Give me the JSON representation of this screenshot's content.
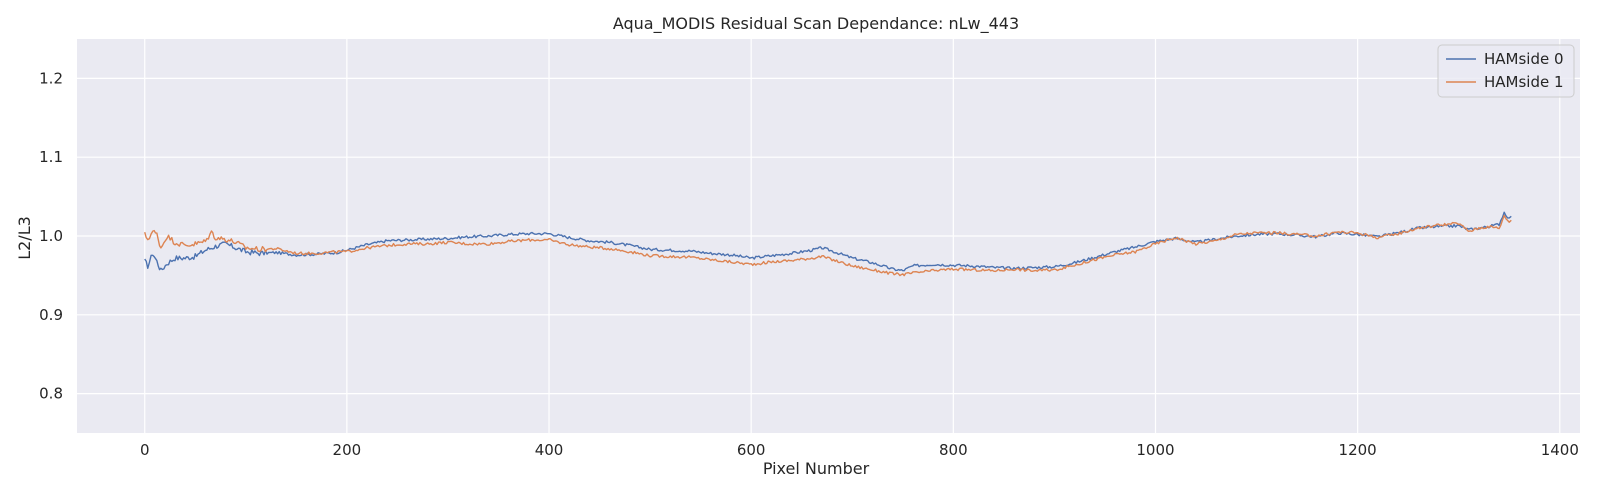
{
  "chart_data": {
    "type": "line",
    "title": "Aqua_MODIS Residual Scan Dependance: nLw_443",
    "xlabel": "Pixel Number",
    "ylabel": "L2/L3",
    "xlim": [
      -67,
      1420
    ],
    "ylim": [
      0.75,
      1.25
    ],
    "xticks": [
      0,
      200,
      400,
      600,
      800,
      1000,
      1200,
      1400
    ],
    "xtick_labels": [
      "0",
      "200",
      "400",
      "600",
      "800",
      "1000",
      "1200",
      "1400"
    ],
    "yticks": [
      0.8,
      0.9,
      1.0,
      1.1,
      1.2
    ],
    "ytick_labels": [
      "0.8",
      "0.9",
      "1.0",
      "1.1",
      "1.2"
    ],
    "grid": true,
    "legend_position": "top-right",
    "series": [
      {
        "name": "HAMside 0",
        "color": "#4c72b0",
        "x": [
          0,
          3,
          8,
          12,
          16,
          22,
          30,
          40,
          50,
          60,
          70,
          80,
          90,
          100,
          115,
          130,
          150,
          170,
          190,
          200,
          220,
          240,
          260,
          280,
          300,
          320,
          340,
          360,
          380,
          400,
          420,
          440,
          460,
          480,
          500,
          520,
          540,
          560,
          580,
          600,
          620,
          640,
          660,
          670,
          680,
          700,
          720,
          740,
          750,
          760,
          780,
          800,
          820,
          840,
          860,
          880,
          900,
          920,
          940,
          960,
          980,
          1000,
          1020,
          1040,
          1060,
          1080,
          1100,
          1120,
          1140,
          1160,
          1180,
          1200,
          1220,
          1240,
          1260,
          1280,
          1300,
          1310,
          1320,
          1330,
          1340,
          1345,
          1350,
          1352
        ],
        "y": [
          0.968,
          0.962,
          0.978,
          0.968,
          0.956,
          0.965,
          0.972,
          0.972,
          0.974,
          0.982,
          0.987,
          0.99,
          0.985,
          0.98,
          0.978,
          0.979,
          0.976,
          0.977,
          0.979,
          0.982,
          0.989,
          0.994,
          0.995,
          0.996,
          0.997,
          0.999,
          1.0,
          1.002,
          1.003,
          1.003,
          0.998,
          0.994,
          0.992,
          0.988,
          0.983,
          0.982,
          0.981,
          0.978,
          0.976,
          0.972,
          0.975,
          0.978,
          0.982,
          0.985,
          0.981,
          0.972,
          0.966,
          0.958,
          0.956,
          0.962,
          0.964,
          0.963,
          0.962,
          0.96,
          0.959,
          0.96,
          0.961,
          0.966,
          0.973,
          0.98,
          0.986,
          0.993,
          0.997,
          0.992,
          0.996,
          1.0,
          1.002,
          1.003,
          1.001,
          0.999,
          1.004,
          1.002,
          0.999,
          1.004,
          1.01,
          1.012,
          1.013,
          1.008,
          1.01,
          1.012,
          1.015,
          1.03,
          1.022,
          1.025
        ]
      },
      {
        "name": "HAMside 1",
        "color": "#dd8452",
        "x": [
          0,
          3,
          8,
          12,
          16,
          22,
          30,
          40,
          50,
          60,
          66,
          70,
          80,
          90,
          100,
          115,
          130,
          150,
          170,
          190,
          200,
          220,
          240,
          260,
          280,
          300,
          320,
          340,
          360,
          380,
          400,
          420,
          440,
          460,
          480,
          500,
          520,
          540,
          560,
          580,
          600,
          620,
          640,
          660,
          670,
          680,
          700,
          720,
          740,
          750,
          760,
          780,
          800,
          820,
          840,
          860,
          880,
          900,
          920,
          940,
          960,
          980,
          1000,
          1020,
          1040,
          1060,
          1080,
          1100,
          1120,
          1140,
          1160,
          1180,
          1200,
          1220,
          1240,
          1260,
          1280,
          1300,
          1310,
          1320,
          1330,
          1340,
          1345,
          1350,
          1352
        ],
        "y": [
          1.002,
          0.996,
          1.006,
          1.002,
          0.985,
          1.0,
          0.992,
          0.988,
          0.99,
          0.993,
          1.005,
          0.998,
          0.996,
          0.992,
          0.985,
          0.983,
          0.984,
          0.978,
          0.978,
          0.98,
          0.98,
          0.985,
          0.988,
          0.99,
          0.99,
          0.992,
          0.99,
          0.99,
          0.993,
          0.995,
          0.995,
          0.989,
          0.986,
          0.984,
          0.98,
          0.975,
          0.974,
          0.973,
          0.97,
          0.967,
          0.964,
          0.967,
          0.969,
          0.972,
          0.974,
          0.97,
          0.962,
          0.957,
          0.952,
          0.951,
          0.953,
          0.956,
          0.958,
          0.957,
          0.956,
          0.958,
          0.956,
          0.957,
          0.963,
          0.97,
          0.976,
          0.98,
          0.99,
          0.998,
          0.99,
          0.994,
          1.002,
          1.004,
          1.004,
          1.002,
          1.0,
          1.005,
          1.004,
          0.998,
          1.003,
          1.01,
          1.014,
          1.016,
          1.006,
          1.01,
          1.012,
          1.01,
          1.025,
          1.018,
          1.02
        ]
      }
    ]
  }
}
